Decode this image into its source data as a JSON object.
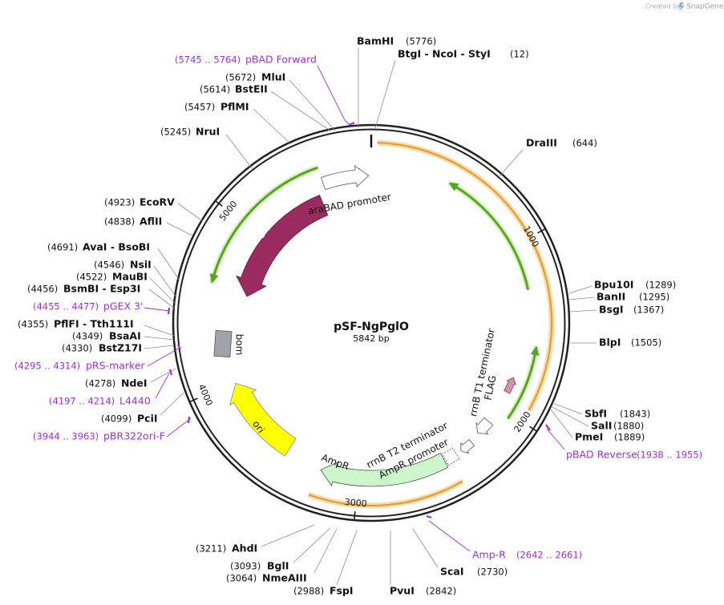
{
  "header": {
    "credit": "Created by",
    "brand": "SnapGene"
  },
  "map": {
    "name": "pSF-NgPglO",
    "size": "5842 bp",
    "ticks": [
      "1000",
      "2000",
      "3000",
      "4000",
      "5000"
    ]
  },
  "features": [
    "araC",
    "araBAD promoter",
    "bom",
    "ori",
    "AmpR",
    "AmpR promoter",
    "rrnB T2 terminator",
    "rrnB T1 terminator",
    "FLAG"
  ],
  "sites": [
    {
      "name": "BamHI",
      "position": "(5776)"
    },
    {
      "name": "BtgI - NcoI - StyI",
      "position": "(12)"
    },
    {
      "name": "DraIII",
      "position": "(644)"
    },
    {
      "name": "Bpu10I",
      "position": "(1289)"
    },
    {
      "name": "BanII",
      "position": "(1295)"
    },
    {
      "name": "BsgI",
      "position": "(1367)"
    },
    {
      "name": "BlpI",
      "position": "(1505)"
    },
    {
      "name": "SbfI",
      "position": "(1843)"
    },
    {
      "name": "SalI",
      "position": "(1880)"
    },
    {
      "name": "PmeI",
      "position": "(1889)"
    },
    {
      "name": "ScaI",
      "position": "(2730)"
    },
    {
      "name": "PvuI",
      "position": "(2842)"
    },
    {
      "name": "FspI",
      "position": "(2988)"
    },
    {
      "name": "NmeAIII",
      "position": "(3064)"
    },
    {
      "name": "BglI",
      "position": "(3093)"
    },
    {
      "name": "AhdI",
      "position": "(3211)"
    },
    {
      "name": "PciI",
      "position": "(4099)"
    },
    {
      "name": "NdeI",
      "position": "(4278)"
    },
    {
      "name": "BstZ17I",
      "position": "(4330)"
    },
    {
      "name": "BsaAI",
      "position": "(4349)"
    },
    {
      "name": "PflFI - Tth111I",
      "position": "(4355)"
    },
    {
      "name": "BsmBI - Esp3I",
      "position": "(4456)"
    },
    {
      "name": "MauBI",
      "position": "(4522)"
    },
    {
      "name": "NsiI",
      "position": "(4546)"
    },
    {
      "name": "AvaI - BsoBI",
      "position": "(4691)"
    },
    {
      "name": "AflII",
      "position": "(4838)"
    },
    {
      "name": "EcoRV",
      "position": "(4923)"
    },
    {
      "name": "NruI",
      "position": "(5245)"
    },
    {
      "name": "PflMI",
      "position": "(5457)"
    },
    {
      "name": "BstEII",
      "position": "(5614)"
    },
    {
      "name": "MluI",
      "position": "(5672)"
    }
  ],
  "primers": [
    {
      "name": "pBAD Forward",
      "range": "(5745 .. 5764)"
    },
    {
      "name": "pGEX 3'",
      "range": "(4455 .. 4477)"
    },
    {
      "name": "pRS-marker",
      "range": "(4295 .. 4314)"
    },
    {
      "name": "L4440",
      "range": "(4197 .. 4214)"
    },
    {
      "name": "pBR322ori-F",
      "range": "(3944 .. 3963)"
    },
    {
      "name": "pBAD Reverse",
      "range": "(1938 .. 1955)"
    },
    {
      "name": "Amp-R",
      "range": "(2642 .. 2661)"
    }
  ]
}
